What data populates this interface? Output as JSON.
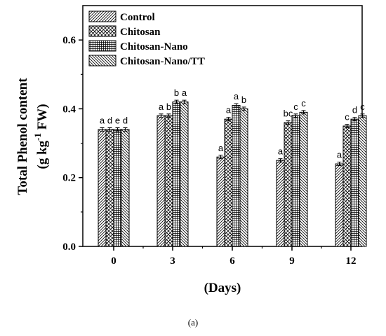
{
  "chart_data": {
    "type": "bar",
    "categories": [
      "0",
      "3",
      "6",
      "9",
      "12"
    ],
    "series": [
      {
        "name": "Control",
        "values": [
          0.34,
          0.38,
          0.26,
          0.25,
          0.24
        ],
        "errors": [
          0.005,
          0.005,
          0.005,
          0.005,
          0.005
        ],
        "labels": [
          "a",
          "a",
          "a",
          "a",
          "a"
        ]
      },
      {
        "name": "Chitosan",
        "values": [
          0.34,
          0.38,
          0.37,
          0.36,
          0.35
        ],
        "errors": [
          0.005,
          0.005,
          0.005,
          0.005,
          0.005
        ],
        "labels": [
          "d",
          "b",
          "a",
          "bc",
          "c"
        ]
      },
      {
        "name": "Chitosan-Nano",
        "values": [
          0.34,
          0.42,
          0.41,
          0.38,
          0.37
        ],
        "errors": [
          0.005,
          0.005,
          0.005,
          0.005,
          0.005
        ],
        "labels": [
          "e",
          "b",
          "a",
          "c",
          "d"
        ]
      },
      {
        "name": "Chitosan-Nano/TT",
        "values": [
          0.34,
          0.42,
          0.4,
          0.39,
          0.38
        ],
        "errors": [
          0.005,
          0.005,
          0.005,
          0.005,
          0.005
        ],
        "labels": [
          "d",
          "a",
          "b",
          "c",
          "c"
        ]
      }
    ],
    "xlabel": "(Days)",
    "ylabel_line1": "Total Phenol content",
    "ylabel_line2_pre": "(g kg",
    "ylabel_line2_sup": "-1",
    "ylabel_line2_post": " FW)",
    "ylim": [
      0,
      0.7
    ],
    "yticks": [
      "0.0",
      "0.2",
      "0.4",
      "0.6"
    ],
    "legend_position": "top-left",
    "panel_label": "(a)"
  }
}
